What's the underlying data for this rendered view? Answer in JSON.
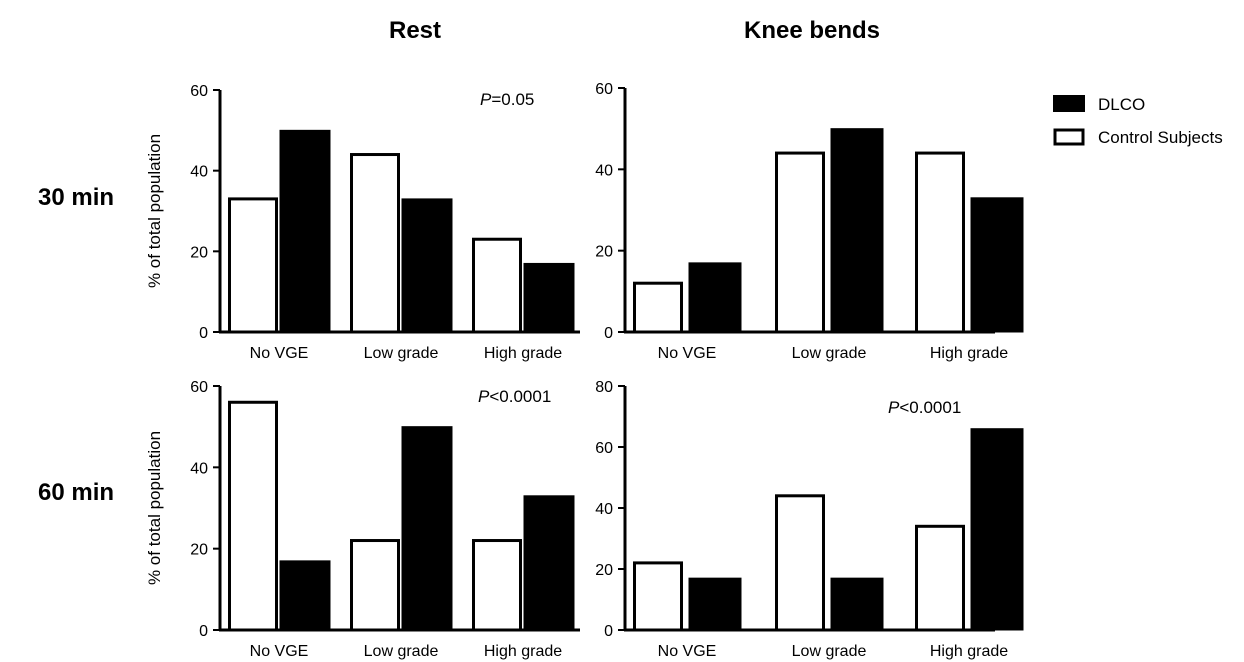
{
  "column_titles": [
    "Rest",
    "Knee bends"
  ],
  "row_labels": [
    "30 min",
    "60 min"
  ],
  "legend": [
    {
      "label": "DLCO",
      "color": "#000000",
      "filled": true
    },
    {
      "label": "Control Subjects",
      "color": "#ffffff",
      "filled": false
    }
  ],
  "chart_data": [
    {
      "type": "bar",
      "row": "30 min",
      "column": "Rest",
      "categories": [
        "No VGE",
        "Low grade",
        "High grade"
      ],
      "ylabel": "% of total population",
      "ylim": [
        0,
        60
      ],
      "yticks": [
        0,
        20,
        40,
        60
      ],
      "annotation": {
        "p": "P",
        "rest": "=0.05"
      },
      "series": [
        {
          "name": "Control Subjects",
          "values": [
            33,
            44,
            23
          ]
        },
        {
          "name": "DLCO",
          "values": [
            50,
            33,
            17
          ]
        }
      ]
    },
    {
      "type": "bar",
      "row": "30 min",
      "column": "Knee bends",
      "categories": [
        "No VGE",
        "Low grade",
        "High grade"
      ],
      "ylabel": "",
      "ylim": [
        0,
        60
      ],
      "yticks": [
        0,
        20,
        40,
        60
      ],
      "annotation": null,
      "series": [
        {
          "name": "Control Subjects",
          "values": [
            12,
            44,
            44
          ]
        },
        {
          "name": "DLCO",
          "values": [
            17,
            50,
            33
          ]
        }
      ]
    },
    {
      "type": "bar",
      "row": "60 min",
      "column": "Rest",
      "categories": [
        "No VGE",
        "Low grade",
        "High grade"
      ],
      "ylabel": "% of total population",
      "ylim": [
        0,
        60
      ],
      "yticks": [
        0,
        20,
        40,
        60
      ],
      "annotation": {
        "p": "P",
        "rest": "<0.0001"
      },
      "series": [
        {
          "name": "Control Subjects",
          "values": [
            56,
            22,
            22
          ]
        },
        {
          "name": "DLCO",
          "values": [
            17,
            50,
            33
          ]
        }
      ]
    },
    {
      "type": "bar",
      "row": "60 min",
      "column": "Knee bends",
      "categories": [
        "No VGE",
        "Low grade",
        "High grade"
      ],
      "ylabel": "",
      "ylim": [
        0,
        80
      ],
      "yticks": [
        0,
        20,
        40,
        60,
        80
      ],
      "annotation": {
        "p": "P",
        "rest": "<0.0001"
      },
      "series": [
        {
          "name": "Control Subjects",
          "values": [
            22,
            44,
            34
          ]
        },
        {
          "name": "DLCO",
          "values": [
            17,
            17,
            66
          ]
        }
      ]
    }
  ]
}
